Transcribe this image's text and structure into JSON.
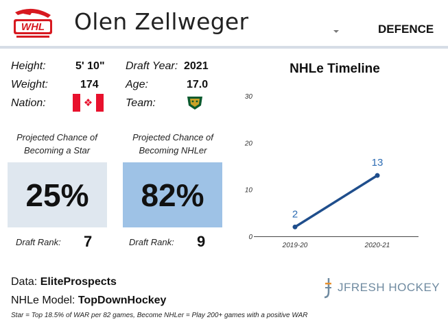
{
  "header": {
    "league_logo_text": "WHL",
    "player_name": "Olen Zellweger",
    "position": "DEFENCE"
  },
  "bio": {
    "height_label": "Height:",
    "height_value": "5' 10\"",
    "weight_label": "Weight:",
    "weight_value": "174",
    "nation_label": "Nation:",
    "nation_flag_icon": "canada-flag-icon",
    "draft_year_label": "Draft Year:",
    "draft_year_value": "2021",
    "age_label": "Age:",
    "age_value": "17.0",
    "team_label": "Team:",
    "team_logo_icon": "everett-silvertips-logo-icon"
  },
  "projections": {
    "star_caption": "Projected Chance of Becoming a Star",
    "star_value": "25%",
    "nhler_caption": "Projected Chance of Becoming NHLer",
    "nhler_value": "82%",
    "star_rank_label": "Draft Rank:",
    "star_rank_value": "7",
    "nhler_rank_label": "Draft Rank:",
    "nhler_rank_value": "9"
  },
  "colors": {
    "star_box": "#dfe7ef",
    "nhler_box": "#9ec2e6",
    "line": "#1f4e8c",
    "data_label": "#2e6db4",
    "league_red": "#d71920"
  },
  "chart_title": "NHLe Timeline",
  "chart_data": {
    "type": "line",
    "title": "NHLe Timeline",
    "categories": [
      "2019-20",
      "2020-21"
    ],
    "series": [
      {
        "values": [
          2,
          13
        ]
      }
    ],
    "data_labels": [
      "2",
      "13"
    ],
    "yticks": [
      "0",
      "10",
      "20",
      "30"
    ],
    "ylim": [
      0,
      30
    ],
    "grid": false
  },
  "footer": {
    "data_prefix": "Data: ",
    "data_source": "EliteProspects",
    "model_prefix": "NHLe Model: ",
    "model_source": "TopDownHockey",
    "footnote": "Star = Top 18.5% of WAR per 82 games, Become NHLer = Play 200+ games with a positive WAR",
    "brand": "JFRESH HOCKEY"
  }
}
